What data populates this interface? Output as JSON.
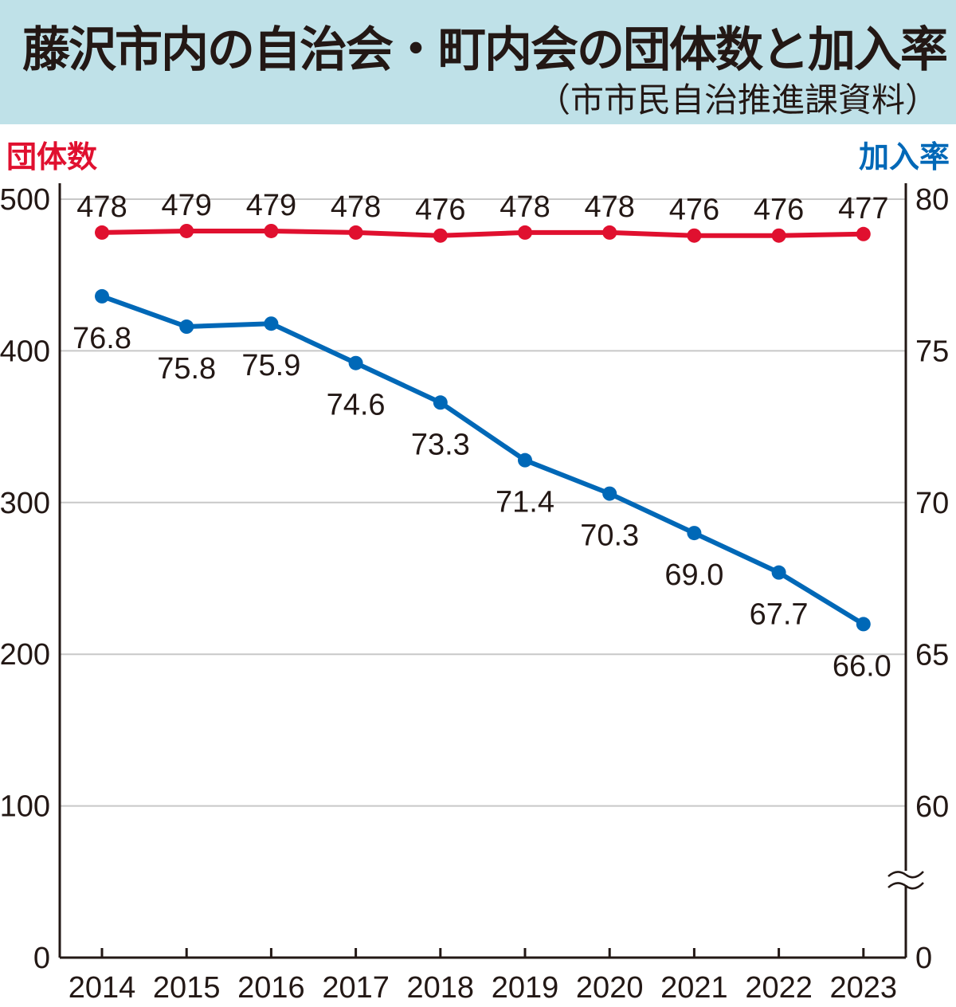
{
  "header": {
    "title": "藤沢市内の自治会・町内会の団体数と加入率",
    "source": "（市市民自治推進課資料）"
  },
  "chart_data": {
    "type": "line",
    "title": "藤沢市内の自治会・町内会の団体数と加入率",
    "x": [
      "2014",
      "2015",
      "2016",
      "2017",
      "2018",
      "2019",
      "2020",
      "2021",
      "2022",
      "2023"
    ],
    "left_axis": {
      "label": "団体数",
      "ticks": [
        "0",
        "100",
        "200",
        "300",
        "400",
        "500"
      ],
      "ylim": [
        0,
        500
      ]
    },
    "right_axis": {
      "label": "加入率",
      "ticks": [
        "0",
        "60",
        "65",
        "70",
        "75",
        "80"
      ],
      "ylim": [
        55,
        80
      ],
      "broken": true
    },
    "grid": true,
    "series": [
      {
        "name": "団体数",
        "axis": "left",
        "color": "#e0102f",
        "values": [
          478,
          479,
          479,
          478,
          476,
          478,
          478,
          476,
          476,
          477
        ],
        "labels": [
          "478",
          "479",
          "479",
          "478",
          "476",
          "478",
          "478",
          "476",
          "476",
          "477"
        ]
      },
      {
        "name": "加入率",
        "axis": "right",
        "color": "#0068b7",
        "values": [
          76.8,
          75.8,
          75.9,
          74.6,
          73.3,
          71.4,
          70.3,
          69.0,
          67.7,
          66.0
        ],
        "labels": [
          "76.8",
          "75.8",
          "75.9",
          "74.6",
          "73.3",
          "71.4",
          "70.3",
          "69.0",
          "67.7",
          "66.0"
        ]
      }
    ]
  }
}
